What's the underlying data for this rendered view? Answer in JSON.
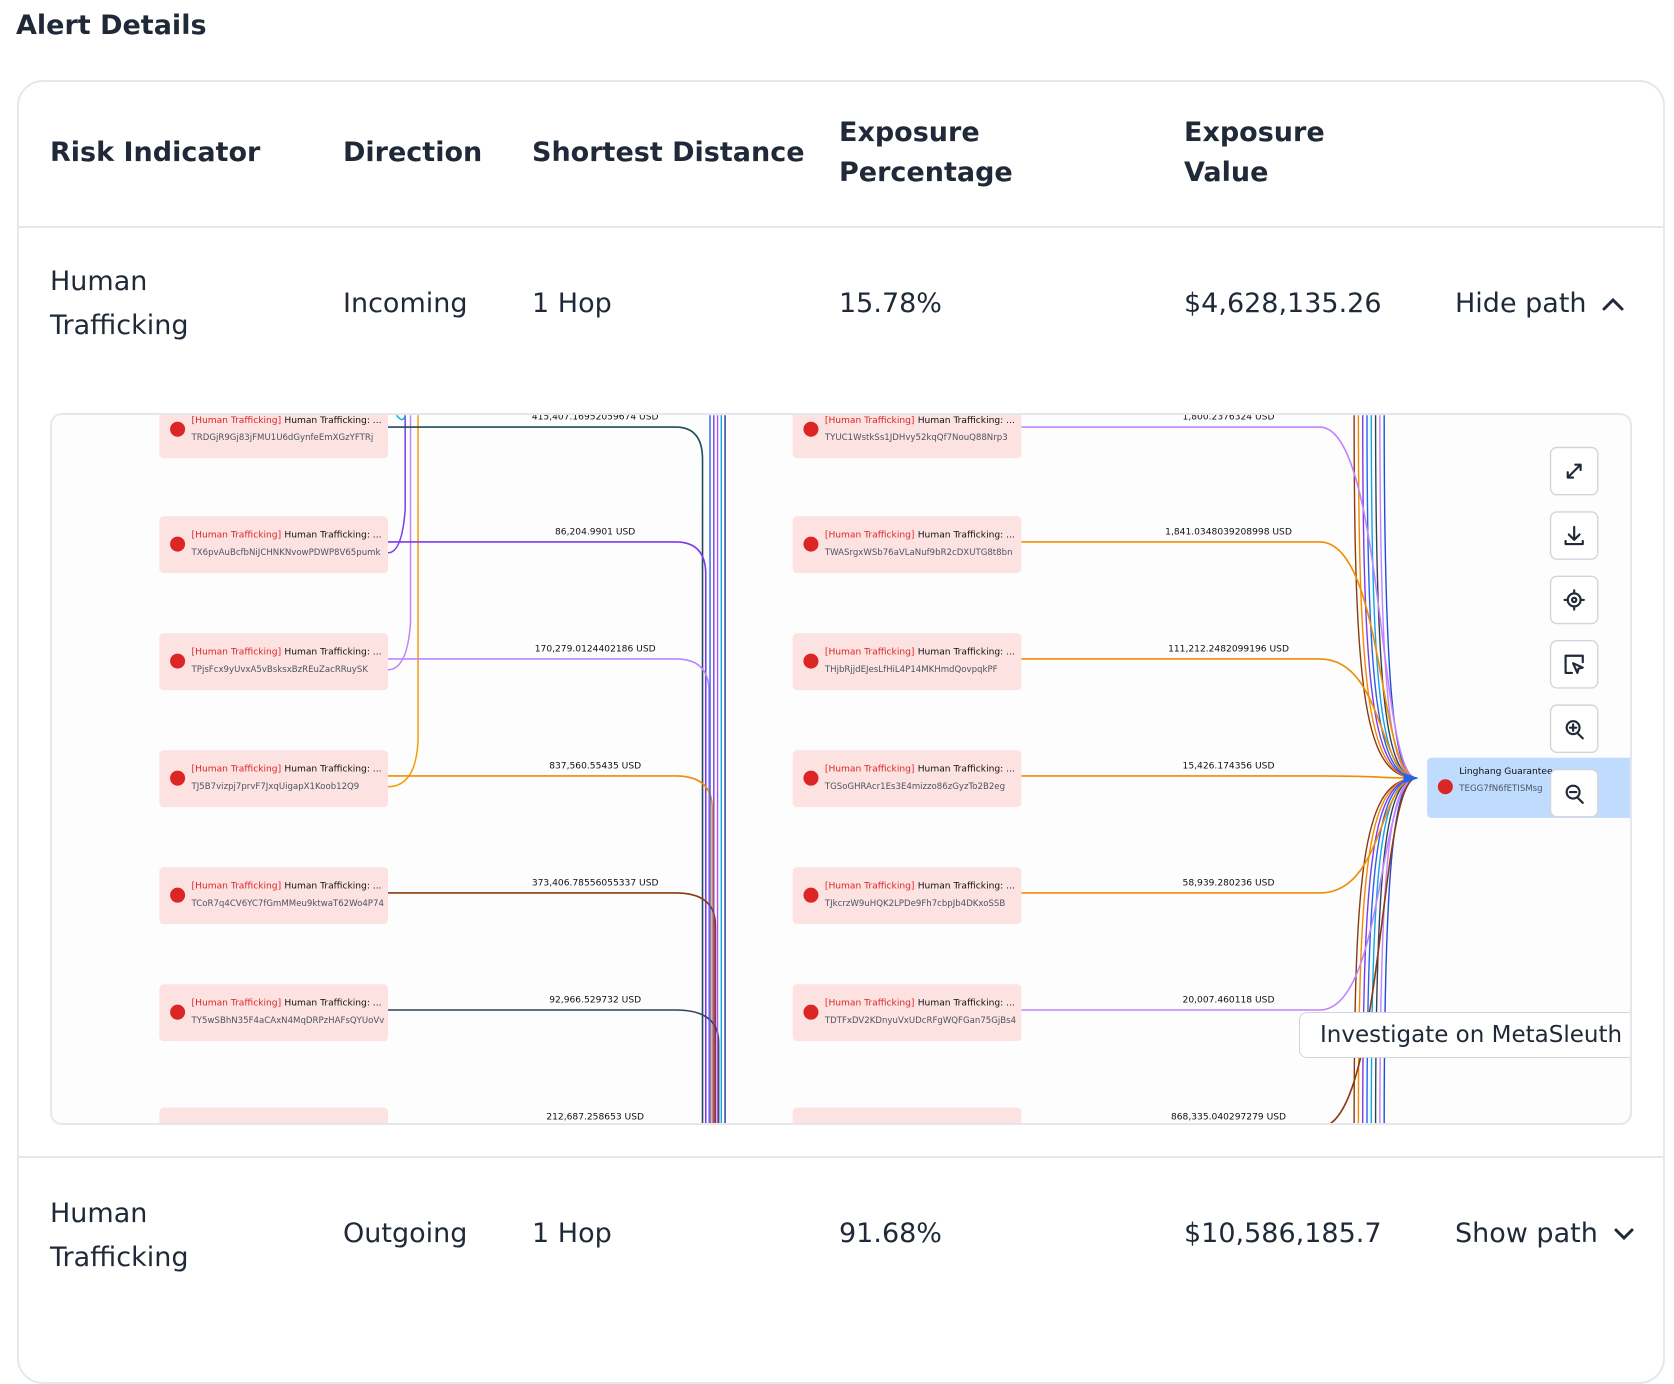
{
  "header": {
    "title": "Alert Details"
  },
  "table": {
    "columns": [
      "Risk Indicator",
      "Direction",
      "Shortest Distance",
      "Exposure Percentage",
      "Exposure Value"
    ],
    "rows": [
      {
        "risk_indicator": "Human Trafficking",
        "direction": "Incoming",
        "shortest_distance": "1 Hop",
        "exposure_percentage": "15.78%",
        "exposure_value": "$4,628,135.26",
        "toggle": "Hide path"
      },
      {
        "risk_indicator": "Human Trafficking",
        "direction": "Outgoing",
        "shortest_distance": "1 Hop",
        "exposure_percentage": "91.68%",
        "exposure_value": "$10,586,185.7",
        "toggle": "Show path"
      }
    ]
  },
  "graph": {
    "left_nodes": [
      {
        "tag": "[Human Trafficking]",
        "label": "Human Trafficking: ...",
        "address": "TRDGjR9Gj83jFMU1U6dGynfeEmXGzYFTRj"
      },
      {
        "tag": "[Human Trafficking]",
        "label": "Human Trafficking: ...",
        "address": "TX6pvAuBcfbNiJCHNKNvowPDWP8V65pumk"
      },
      {
        "tag": "[Human Trafficking]",
        "label": "Human Trafficking: ...",
        "address": "TPjsFcx9yUvxA5vBsksxBzREuZacRRuySK"
      },
      {
        "tag": "[Human Trafficking]",
        "label": "Human Trafficking: ...",
        "address": "TJ5B7vizpj7prvF7JxqUigapX1Koob12Q9"
      },
      {
        "tag": "[Human Trafficking]",
        "label": "Human Trafficking: ...",
        "address": "TCoR7q4CV6YC7fGmMMeu9ktwaT62Wo4P74"
      },
      {
        "tag": "[Human Trafficking]",
        "label": "Human Trafficking: ...",
        "address": "TY5wSBhN35F4aCAxN4MqDRPzHAFsQYUoVv"
      }
    ],
    "left_edges": [
      {
        "amount": "415,407.16952059674 USD",
        "color": "#1e4d5c"
      },
      {
        "amount": "86,204.9901 USD",
        "color": "#7c3aed"
      },
      {
        "amount": "170,279.0124402186 USD",
        "color": "#c084fc"
      },
      {
        "amount": "837,560.55435 USD",
        "color": "#f08c00"
      },
      {
        "amount": "373,406.78556055337 USD",
        "color": "#8b3a0f"
      },
      {
        "amount": "92,966.529732 USD",
        "color": "#334155"
      },
      {
        "amount": "212,687.258653 USD",
        "color": "#e07b00"
      }
    ],
    "right_nodes": [
      {
        "tag": "[Human Trafficking]",
        "label": "Human Trafficking: ...",
        "address": "TYUC1WstkSs1JDHvy52kqQf7NouQ88Nrp3"
      },
      {
        "tag": "[Human Trafficking]",
        "label": "Human Trafficking: ...",
        "address": "TWASrgxWSb76aVLaNuf9bR2cDXUTG8t8bn"
      },
      {
        "tag": "[Human Trafficking]",
        "label": "Human Trafficking: ...",
        "address": "THjbRjjdEJesLfHiL4P14MKHmdQovpqkPF"
      },
      {
        "tag": "[Human Trafficking]",
        "label": "Human Trafficking: ...",
        "address": "TGSoGHRAcr1Es3E4mizzo86zGyzTo2B2eg"
      },
      {
        "tag": "[Human Trafficking]",
        "label": "Human Trafficking: ...",
        "address": "TJkcrzW9uHQK2LPDe9Fh7cbpJb4DKxoSSB"
      },
      {
        "tag": "[Human Trafficking]",
        "label": "Human Trafficking: ...",
        "address": "TDTFxDV2KDnyuVxUDcRFgWQFGan75GjBs4"
      }
    ],
    "right_edges": [
      {
        "amount": "1,800.2376324 USD",
        "color": "#c084fc"
      },
      {
        "amount": "1,841.0348039208998 USD",
        "color": "#f08c00"
      },
      {
        "amount": "111,212.2482099196 USD",
        "color": "#f08c00"
      },
      {
        "amount": "15,426.174356 USD",
        "color": "#f08c00"
      },
      {
        "amount": "58,939.280236 USD",
        "color": "#f08c00"
      },
      {
        "amount": "20,007.460118 USD",
        "color": "#c084fc"
      },
      {
        "amount": "868,335.040297279 USD",
        "color": "#8b3a0f"
      }
    ],
    "target": {
      "label": "Linghang Guarantee",
      "address": "TEGG7fN6fETISMsg"
    },
    "button": "Investigate on MetaSleuth"
  }
}
